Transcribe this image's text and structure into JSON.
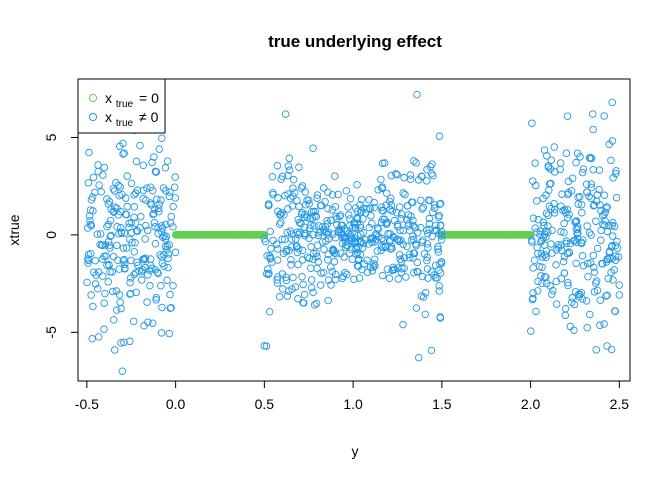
{
  "chart_data": {
    "type": "scatter",
    "title": "true underlying effect",
    "xlabel": "y",
    "ylabel": "xtrue",
    "xlim": [
      -0.55,
      2.56
    ],
    "ylim": [
      -7.5,
      8.0
    ],
    "x_ticks": [
      -0.5,
      0.0,
      0.5,
      1.0,
      1.5,
      2.0,
      2.5
    ],
    "x_tick_labels": [
      "-0.5",
      "0.0",
      "0.5",
      "1.0",
      "1.5",
      "2.0",
      "2.5"
    ],
    "y_ticks": [
      -5,
      0,
      5
    ],
    "y_tick_labels": [
      "-5",
      "0",
      "5"
    ],
    "grid": false,
    "legend_position": "top-left",
    "series": [
      {
        "name_main": "x",
        "name_sub": "true",
        "name_rel": "= 0",
        "color": "#61D04F",
        "marker": "open-circle",
        "x_range": [
          0.0,
          0.5,
          1.5,
          2.0
        ],
        "y_value": 0,
        "description": "y in [0, 0.5] and [1.5, 2.0]"
      },
      {
        "name_main": "x",
        "name_sub": "true",
        "name_rel": "≠ 0",
        "color": "#2297E6",
        "marker": "open-circle",
        "clusters": [
          {
            "x_range": [
              -0.5,
              0.0
            ],
            "y_spread": 2.5
          },
          {
            "x_range": [
              0.5,
              1.5
            ],
            "y_spread": 2.3
          },
          {
            "x_range": [
              2.0,
              2.5
            ],
            "y_spread": 2.5
          }
        ],
        "extremes": [
          {
            "x": -0.3,
            "y": -7.0
          },
          {
            "x": 1.36,
            "y": 7.2
          },
          {
            "x": 0.62,
            "y": 6.2
          },
          {
            "x": 1.37,
            "y": -6.3
          },
          {
            "x": 2.46,
            "y": 6.8
          },
          {
            "x": 2.37,
            "y": -5.9
          },
          {
            "x": 0.5,
            "y": -5.7
          },
          {
            "x": 2.35,
            "y": 6.2
          }
        ]
      }
    ]
  }
}
